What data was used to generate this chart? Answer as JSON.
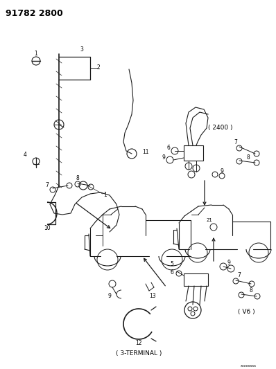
{
  "title": "91782 2800",
  "bg_color": "#ffffff",
  "line_color": "#1a1a1a",
  "fig_width": 3.98,
  "fig_height": 5.33,
  "dpi": 100,
  "labels": {
    "title": "91782 2800",
    "label_2400": "( 2400 )",
    "label_v6": "( V6 )",
    "label_3terminal": "( 3-TERMINAL )"
  }
}
